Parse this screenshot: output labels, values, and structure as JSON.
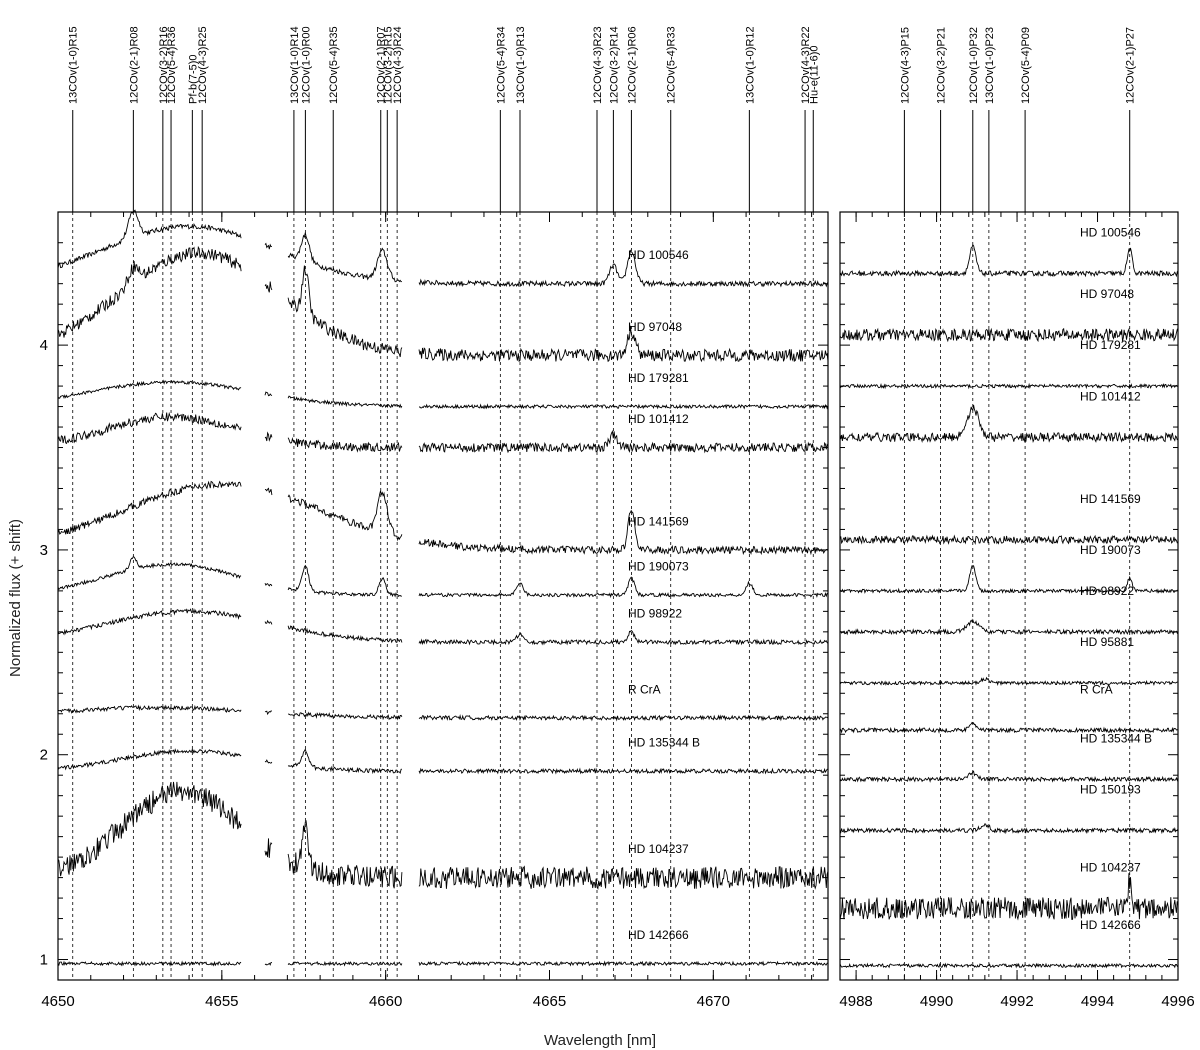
{
  "chart_data": {
    "type": "line",
    "xlabel": "Wavelength [nm]",
    "ylabel": "Normalized flux (+ shift)",
    "grid": false,
    "panels": [
      {
        "name": "left",
        "xlim": [
          4650,
          4673.5
        ],
        "xticks": [
          4650,
          4655,
          4660,
          4665,
          4670
        ],
        "ylim": [
          0.9,
          4.65
        ],
        "yticks": [
          1,
          2,
          3,
          4
        ],
        "gaps": [
          [
            4655.6,
            4656.3
          ],
          [
            4656.55,
            4657.0
          ],
          [
            4660.5,
            4661.0
          ]
        ],
        "lines": [
          {
            "label": "13COv(1-0)R15",
            "wavelength": 4650.45
          },
          {
            "label": "12COv(2-1)R08",
            "wavelength": 4652.3
          },
          {
            "label": "12COv(3-2)R16",
            "wavelength": 4653.2
          },
          {
            "label": "12COv(5-4)R36",
            "wavelength": 4653.45
          },
          {
            "label": "Pf-b(7-5)0",
            "wavelength": 4654.1
          },
          {
            "label": "12COv(4-3)R25",
            "wavelength": 4654.4
          },
          {
            "label": "13COv(1-0)R14",
            "wavelength": 4657.2
          },
          {
            "label": "12COv(1-0)R00",
            "wavelength": 4657.55
          },
          {
            "label": "12COv(5-4)R35",
            "wavelength": 4658.4
          },
          {
            "label": "12COv(2-1)R07",
            "wavelength": 4659.85
          },
          {
            "label": "12COv(3-2)R15",
            "wavelength": 4660.05
          },
          {
            "label": "12COv(4-3)R24",
            "wavelength": 4660.35
          },
          {
            "label": "12COv(5-4)R34",
            "wavelength": 4663.5
          },
          {
            "label": "13COv(1-0)R13",
            "wavelength": 4664.1
          },
          {
            "label": "12COv(4-3)R23",
            "wavelength": 4666.45
          },
          {
            "label": "12COv(3-2)R14",
            "wavelength": 4666.95
          },
          {
            "label": "12COv(2-1)R06",
            "wavelength": 4667.5
          },
          {
            "label": "12COv(5-4)R33",
            "wavelength": 4668.7
          },
          {
            "label": "13COv(1-0)R12",
            "wavelength": 4671.1
          },
          {
            "label": "12COv(4-3)R22",
            "wavelength": 4672.8
          },
          {
            "label": "Hu-e(11-6)0",
            "wavelength": 4673.05
          }
        ]
      },
      {
        "name": "right",
        "xlim": [
          4987.6,
          4996
        ],
        "xticks": [
          4988,
          4990,
          4992,
          4994,
          4996
        ],
        "ylim": [
          0.9,
          4.65
        ],
        "lines": [
          {
            "label": "12COv(4-3)P15",
            "wavelength": 4989.2
          },
          {
            "label": "12COv(3-2)P21",
            "wavelength": 4990.1
          },
          {
            "label": "12COv(1-0)P32",
            "wavelength": 4990.9
          },
          {
            "label": "13COv(1-0)P23",
            "wavelength": 4991.3
          },
          {
            "label": "12COv(5-4)P09",
            "wavelength": 4992.2
          },
          {
            "label": "12COv(2-1)P27",
            "wavelength": 4994.8
          }
        ]
      }
    ],
    "series": [
      {
        "name": "HD 100546",
        "offset_left": 4.3,
        "offset_right": 4.35,
        "noise": 0.012,
        "hump": [
          4654.0,
          2.6,
          0.28
        ],
        "peaks": [
          [
            4652.3,
            0.13,
            0.15
          ],
          [
            4657.55,
            0.13,
            0.12
          ],
          [
            4659.9,
            0.14,
            0.15
          ],
          [
            4666.95,
            0.09,
            0.12
          ],
          [
            4667.5,
            0.16,
            0.12
          ],
          [
            4990.9,
            0.13,
            0.08
          ],
          [
            4994.8,
            0.12,
            0.06
          ]
        ]
      },
      {
        "name": "HD 97048",
        "offset_left": 3.95,
        "offset_right": 4.05,
        "noise": 0.03,
        "hump": [
          4654.3,
          2.4,
          0.5
        ],
        "peaks": [
          [
            4652.3,
            0.08,
            0.15
          ],
          [
            4657.55,
            0.22,
            0.1
          ],
          [
            4667.5,
            0.12,
            0.12
          ]
        ]
      },
      {
        "name": "HD 179281",
        "offset_left": 3.7,
        "offset_right": 3.8,
        "noise": 0.008,
        "hump": [
          4653.5,
          2.5,
          0.12
        ],
        "peaks": []
      },
      {
        "name": "HD 101412",
        "offset_left": 3.5,
        "offset_right": 3.55,
        "noise": 0.022,
        "hump": [
          4653.5,
          2.0,
          0.15
        ],
        "peaks": [
          [
            4666.95,
            0.06,
            0.12
          ],
          [
            4990.9,
            0.14,
            0.15
          ]
        ]
      },
      {
        "name": "HD 141569",
        "offset_left": 3.0,
        "offset_right": 3.05,
        "noise": 0.018,
        "hump": [
          4655.0,
          3.0,
          0.32
        ],
        "peaks": [
          [
            4659.9,
            0.2,
            0.15
          ],
          [
            4667.5,
            0.2,
            0.1
          ]
        ]
      },
      {
        "name": "HD 190073",
        "offset_left": 2.78,
        "offset_right": 2.8,
        "noise": 0.008,
        "hump": [
          4653.5,
          2.0,
          0.15
        ],
        "peaks": [
          [
            4652.3,
            0.06,
            0.1
          ],
          [
            4657.55,
            0.12,
            0.1
          ],
          [
            4659.9,
            0.08,
            0.1
          ],
          [
            4664.1,
            0.06,
            0.1
          ],
          [
            4667.5,
            0.08,
            0.1
          ],
          [
            4671.1,
            0.06,
            0.1
          ],
          [
            4990.9,
            0.12,
            0.08
          ],
          [
            4994.8,
            0.06,
            0.06
          ]
        ]
      },
      {
        "name": "HD 98922",
        "offset_left": 2.55,
        "offset_right": 2.6,
        "noise": 0.01,
        "hump": [
          4654.0,
          2.5,
          0.15
        ],
        "peaks": [
          [
            4664.1,
            0.04,
            0.1
          ],
          [
            4667.5,
            0.05,
            0.1
          ],
          [
            4990.9,
            0.05,
            0.15
          ]
        ]
      },
      {
        "name": "HD 95881",
        "offset_right": 2.35,
        "noise": 0.008,
        "peaks": [
          [
            4991.2,
            0.02,
            0.1
          ]
        ]
      },
      {
        "name": "R CrA",
        "offset_left": 2.18,
        "offset_right": 2.12,
        "noise": 0.01,
        "hump": [
          4653.0,
          3.0,
          0.05
        ],
        "peaks": [
          [
            4990.9,
            0.04,
            0.08
          ]
        ]
      },
      {
        "name": "HD 135344 B",
        "offset_left": 1.92,
        "offset_right": 1.88,
        "noise": 0.01,
        "hump": [
          4654.0,
          2.0,
          0.1
        ],
        "peaks": [
          [
            4657.55,
            0.08,
            0.1
          ],
          [
            4990.9,
            0.03,
            0.1
          ]
        ]
      },
      {
        "name": "HD 150193",
        "offset_right": 1.63,
        "noise": 0.01,
        "peaks": [
          [
            4991.2,
            0.03,
            0.1
          ]
        ]
      },
      {
        "name": "HD 104237",
        "offset_left": 1.4,
        "offset_right": 1.25,
        "noise": 0.055,
        "hump": [
          4653.8,
          1.8,
          0.42
        ],
        "peaks": [
          [
            4657.55,
            0.18,
            0.1
          ],
          [
            4994.8,
            0.15,
            0.05
          ]
        ]
      },
      {
        "name": "HD 142666",
        "offset_left": 0.98,
        "offset_right": 0.97,
        "noise": 0.008,
        "peaks": []
      }
    ]
  }
}
